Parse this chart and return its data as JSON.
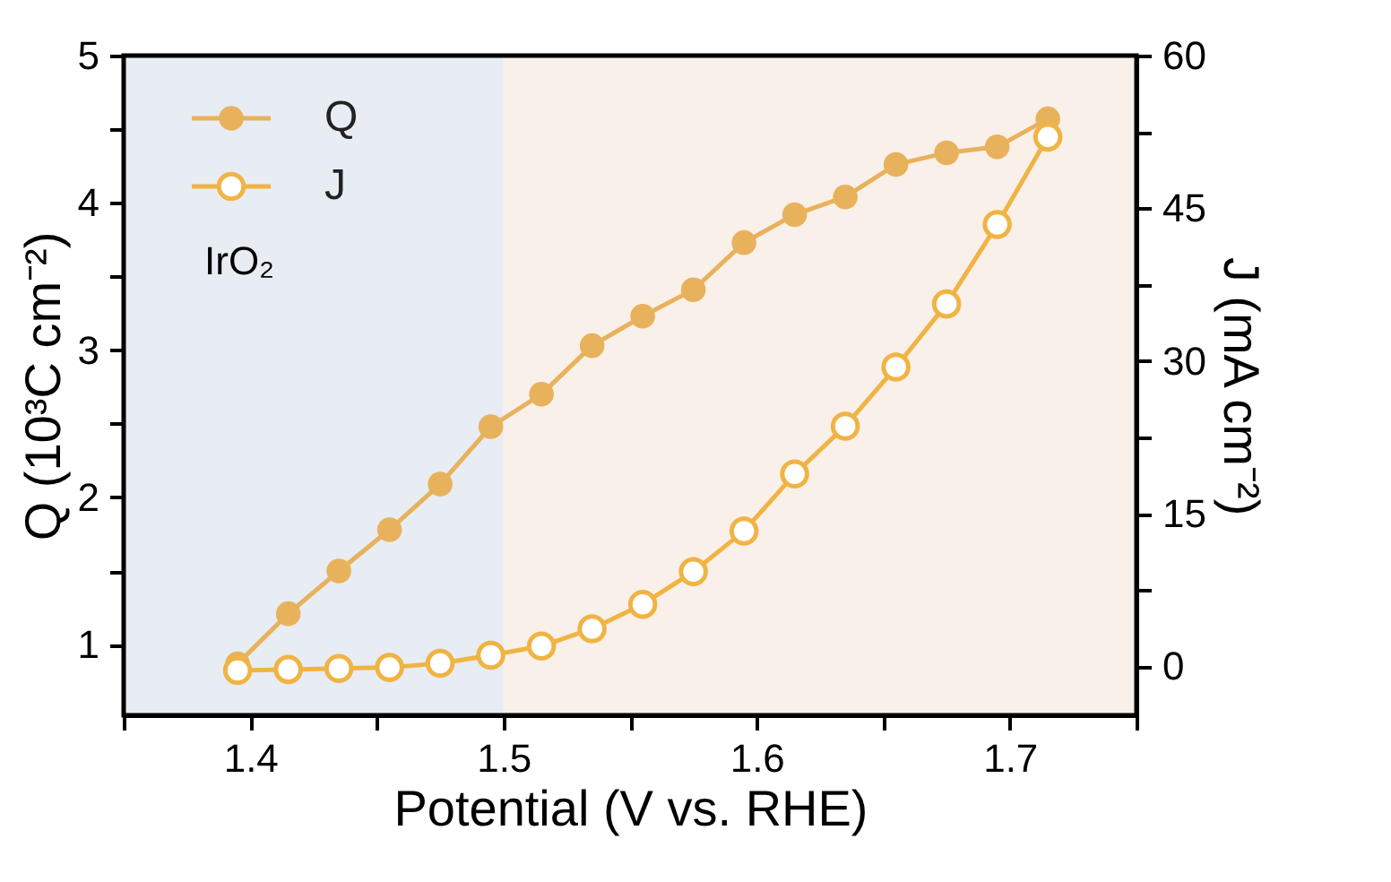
{
  "chart_data": {
    "type": "line",
    "xlabel": "Potential (V vs. RHE)",
    "ylabel": "Q (10³C cm⁻²)",
    "y2label": "J (mA cm⁻²)",
    "xlim": [
      1.35,
      1.75
    ],
    "xticks": [
      {
        "value": 1.35,
        "label": null
      },
      1.4,
      {
        "value": 1.45,
        "label": null
      },
      1.5,
      {
        "value": 1.55,
        "label": null
      },
      1.6,
      {
        "value": 1.65,
        "label": null
      },
      1.7,
      {
        "value": 1.75,
        "label": null
      }
    ],
    "ylim": [
      0.52,
      5
    ],
    "yticks": [
      1,
      {
        "value": 1.5,
        "label": null
      },
      2,
      {
        "value": 2.5,
        "label": null
      },
      3,
      {
        "value": 3.5,
        "label": null
      },
      4,
      {
        "value": 4.5,
        "label": null
      },
      5
    ],
    "y2lim": [
      -4.8,
      60
    ],
    "y2ticks": [
      0,
      {
        "value": 7.5,
        "label": null
      },
      15,
      {
        "value": 22.5,
        "label": null
      },
      30,
      {
        "value": 37.5,
        "label": null
      },
      45,
      {
        "value": 52.5,
        "label": null
      },
      60
    ],
    "x": [
      1.395,
      1.415,
      1.435,
      1.455,
      1.475,
      1.495,
      1.515,
      1.535,
      1.555,
      1.575,
      1.595,
      1.615,
      1.635,
      1.655,
      1.675,
      1.695,
      1.715
    ],
    "series": [
      {
        "name": "Q",
        "color": "#e8b25c",
        "values": [
          0.87,
          1.21,
          1.5,
          1.78,
          2.09,
          2.48,
          2.7,
          3.03,
          3.23,
          3.41,
          3.73,
          3.92,
          4.04,
          4.26,
          4.34,
          4.38,
          4.57
        ]
      },
      {
        "name": "J",
        "color": "#f0b444",
        "axis": "y2",
        "values": [
          -0.4,
          -0.3,
          -0.2,
          -0.1,
          0.3,
          1.1,
          2.0,
          3.7,
          6.1,
          9.3,
          13.3,
          18.9,
          23.6,
          29.4,
          35.6,
          43.4,
          52.0
        ]
      }
    ],
    "bands": [
      {
        "axis": "x",
        "from": 1.35,
        "to": 1.5,
        "color": "#e8ecf3"
      },
      {
        "axis": "x",
        "from": 1.5,
        "to": 1.75,
        "color": "#faf0ea"
      }
    ],
    "annotations": [
      "IrO₂"
    ],
    "marker": "circle",
    "line_style": "solid",
    "legend": "top left",
    "grid": false
  }
}
